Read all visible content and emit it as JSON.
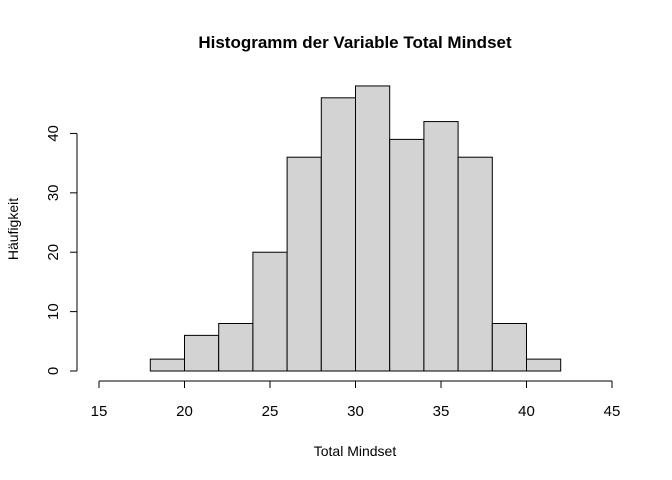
{
  "chart_data": {
    "type": "bar",
    "title": "Histogramm der Variable Total Mindset",
    "xlabel": "Total Mindset",
    "ylabel": "Häufigkeit",
    "bin_edges": [
      18,
      20,
      22,
      24,
      26,
      28,
      30,
      32,
      34,
      36,
      38,
      40,
      42
    ],
    "values": [
      2,
      6,
      8,
      20,
      36,
      46,
      48,
      39,
      42,
      36,
      8,
      2
    ],
    "xlim": [
      15,
      45
    ],
    "ylim": [
      0,
      49
    ],
    "x_ticks": [
      15,
      20,
      25,
      30,
      35,
      40,
      45
    ],
    "y_ticks": [
      0,
      10,
      20,
      30,
      40
    ],
    "grid": false,
    "bar_color": "#d3d3d3",
    "edge_color": "#000000"
  }
}
